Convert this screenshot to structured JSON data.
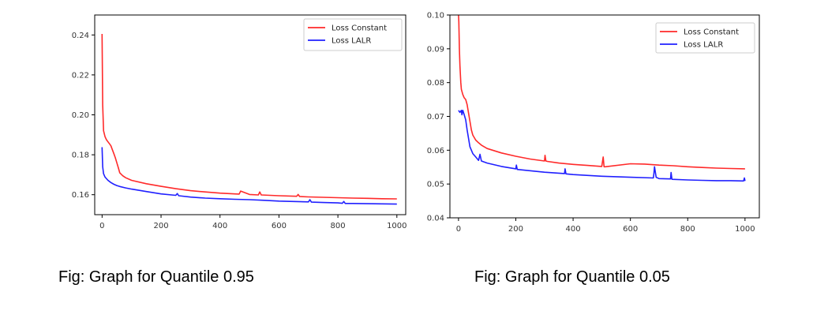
{
  "captions": [
    "Fig: Graph for Quantile 0.95",
    "Fig: Graph for Quantile 0.05"
  ],
  "colors": {
    "constant": "#ff2a2a",
    "lalr": "#2020ff"
  },
  "chart_data": [
    {
      "type": "line",
      "title": "",
      "xlabel": "",
      "ylabel": "",
      "xlim": [
        -25,
        1030
      ],
      "ylim": [
        0.15,
        0.25
      ],
      "xticks": [
        0,
        200,
        400,
        600,
        800,
        1000
      ],
      "yticks": [
        0.16,
        0.18,
        0.2,
        0.22,
        0.24
      ],
      "ytick_labels": [
        "0.16",
        "0.18",
        "0.20",
        "0.22",
        "0.24"
      ],
      "legend": "top-right",
      "series": [
        {
          "name": "Loss Constant",
          "color": "#ff2a2a",
          "x": [
            0,
            2,
            5,
            10,
            15,
            20,
            25,
            30,
            35,
            40,
            45,
            50,
            55,
            60,
            70,
            80,
            100,
            150,
            200,
            250,
            300,
            350,
            400,
            450,
            465,
            470,
            500,
            530,
            535,
            540,
            600,
            660,
            665,
            670,
            700,
            750,
            800,
            850,
            900,
            950,
            1000
          ],
          "y": [
            0.2405,
            0.205,
            0.192,
            0.189,
            0.1875,
            0.1865,
            0.1855,
            0.1845,
            0.1825,
            0.1805,
            0.1785,
            0.176,
            0.1735,
            0.171,
            0.1695,
            0.1685,
            0.1672,
            0.1655,
            0.1642,
            0.163,
            0.162,
            0.1614,
            0.1608,
            0.1604,
            0.1603,
            0.1618,
            0.1601,
            0.1599,
            0.1614,
            0.1599,
            0.1595,
            0.1592,
            0.1601,
            0.1591,
            0.1589,
            0.1587,
            0.1585,
            0.1583,
            0.1582,
            0.158,
            0.1579
          ]
        },
        {
          "name": "Loss LALR",
          "color": "#2020ff",
          "x": [
            0,
            2,
            5,
            10,
            20,
            30,
            40,
            50,
            60,
            80,
            100,
            150,
            200,
            250,
            255,
            260,
            300,
            350,
            400,
            450,
            500,
            550,
            600,
            650,
            700,
            705,
            710,
            750,
            800,
            815,
            820,
            825,
            850,
            900,
            950,
            1000
          ],
          "y": [
            0.1838,
            0.174,
            0.1705,
            0.1688,
            0.1672,
            0.1661,
            0.1652,
            0.1646,
            0.1641,
            0.1634,
            0.1628,
            0.1616,
            0.1604,
            0.1597,
            0.1606,
            0.1595,
            0.1588,
            0.1583,
            0.158,
            0.1577,
            0.1575,
            0.1572,
            0.1568,
            0.1566,
            0.1564,
            0.1575,
            0.1563,
            0.1561,
            0.1559,
            0.1557,
            0.1566,
            0.1556,
            0.1556,
            0.1555,
            0.1554,
            0.1553
          ]
        }
      ]
    },
    {
      "type": "line",
      "title": "",
      "xlabel": "",
      "ylabel": "",
      "xlim": [
        -30,
        1050
      ],
      "ylim": [
        0.04,
        0.1
      ],
      "xticks": [
        0,
        200,
        400,
        600,
        800,
        1000
      ],
      "yticks": [
        0.04,
        0.05,
        0.06,
        0.07,
        0.08,
        0.09,
        0.1
      ],
      "ytick_labels": [
        "0.04",
        "0.05",
        "0.06",
        "0.07",
        "0.08",
        "0.09",
        "0.10"
      ],
      "legend": "top-right",
      "series": [
        {
          "name": "Loss Constant",
          "color": "#ff2a2a",
          "x": [
            0,
            1,
            3,
            5,
            8,
            10,
            15,
            20,
            25,
            30,
            35,
            40,
            45,
            50,
            60,
            70,
            80,
            100,
            150,
            200,
            250,
            300,
            302,
            305,
            310,
            350,
            400,
            450,
            500,
            505,
            508,
            512,
            600,
            650,
            700,
            750,
            800,
            850,
            900,
            950,
            1000
          ],
          "y": [
            0.1,
            0.098,
            0.09,
            0.085,
            0.08,
            0.078,
            0.0765,
            0.0755,
            0.075,
            0.0735,
            0.071,
            0.0685,
            0.066,
            0.0645,
            0.063,
            0.0622,
            0.0615,
            0.0605,
            0.0592,
            0.0582,
            0.0574,
            0.0568,
            0.0585,
            0.0568,
            0.0567,
            0.0562,
            0.0558,
            0.0555,
            0.0552,
            0.058,
            0.0551,
            0.0551,
            0.056,
            0.0559,
            0.0556,
            0.0554,
            0.0551,
            0.0549,
            0.0547,
            0.0546,
            0.0545
          ]
        },
        {
          "name": "Loss LALR",
          "color": "#2020ff",
          "x": [
            0,
            5,
            10,
            12,
            15,
            20,
            25,
            30,
            40,
            50,
            60,
            70,
            75,
            80,
            100,
            150,
            200,
            202,
            205,
            300,
            370,
            372,
            375,
            400,
            500,
            600,
            680,
            682,
            684,
            690,
            700,
            740,
            742,
            745,
            800,
            850,
            900,
            950,
            995,
            998,
            1000
          ],
          "y": [
            0.0718,
            0.0712,
            0.0718,
            0.0705,
            0.0718,
            0.0705,
            0.069,
            0.066,
            0.061,
            0.059,
            0.058,
            0.057,
            0.0588,
            0.0568,
            0.0562,
            0.0552,
            0.0545,
            0.0556,
            0.0543,
            0.0535,
            0.0531,
            0.0545,
            0.053,
            0.0528,
            0.0523,
            0.052,
            0.0518,
            0.053,
            0.0551,
            0.052,
            0.0516,
            0.0515,
            0.0534,
            0.0514,
            0.0512,
            0.0511,
            0.051,
            0.051,
            0.0509,
            0.0518,
            0.0509
          ]
        }
      ]
    }
  ]
}
